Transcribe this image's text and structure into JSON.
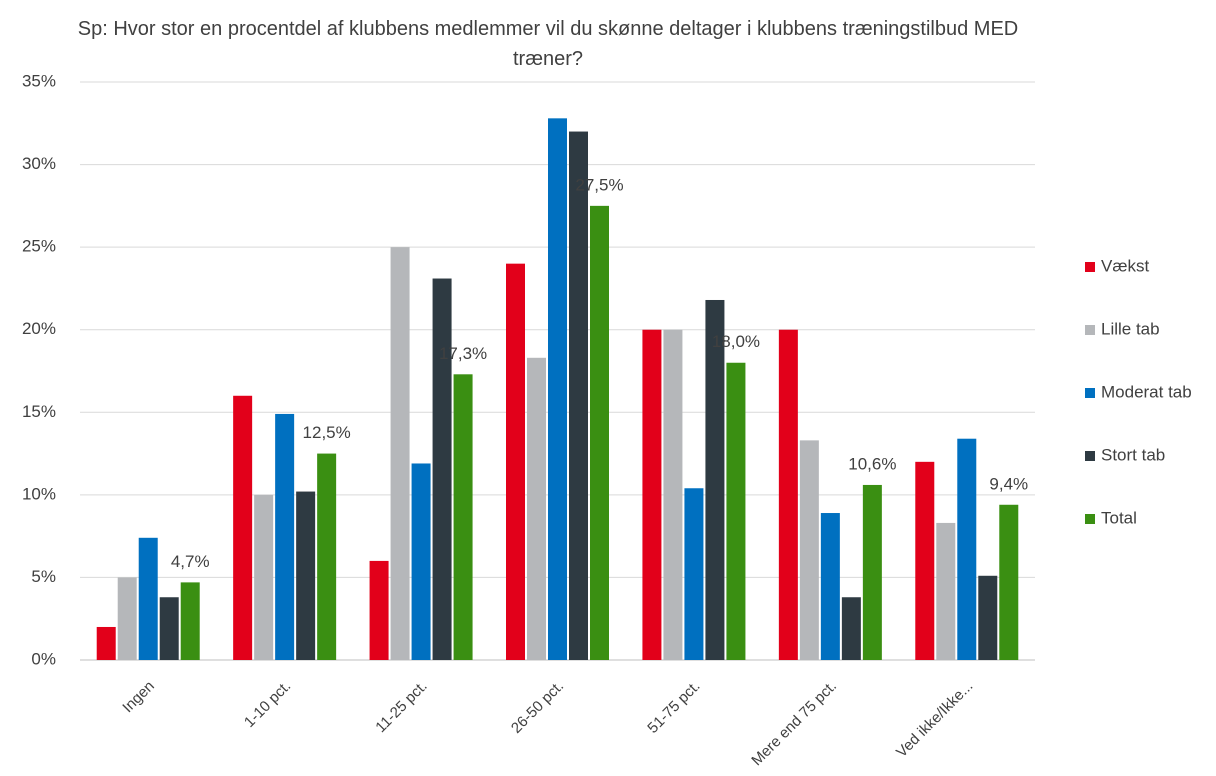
{
  "chart_data": {
    "type": "bar",
    "title": "Sp: Hvor stor en procentdel af klubbens medlemmer vil du skønne deltager i klubbens træningstilbud MED træner?",
    "categories": [
      "Ingen",
      "1-10 pct.",
      "11-25 pct.",
      "26-50 pct.",
      "51-75 pct.",
      "Mere end 75 pct.",
      "Ved ikke/Ikke..."
    ],
    "series": [
      {
        "name": "Vækst",
        "color": "#e2001a",
        "values": [
          2,
          16,
          6,
          24,
          20,
          20,
          12
        ]
      },
      {
        "name": "Lille tab",
        "color": "#b5b7ba",
        "values": [
          5,
          10,
          25,
          18.3,
          20,
          13.3,
          8.3
        ]
      },
      {
        "name": "Moderat tab",
        "color": "#0070c0",
        "values": [
          7.4,
          14.9,
          11.9,
          32.8,
          10.4,
          8.9,
          13.4
        ]
      },
      {
        "name": "Stort tab",
        "color": "#2e3a42",
        "values": [
          3.8,
          10.2,
          23.1,
          32.0,
          21.8,
          3.8,
          5.1
        ]
      },
      {
        "name": "Total",
        "color": "#3a8f12",
        "values": [
          4.7,
          12.5,
          17.3,
          27.5,
          18.0,
          10.6,
          9.4
        ],
        "value_labels": [
          "4,7%",
          "12,5%",
          "17,3%",
          "27,5%",
          "18,0%",
          "10,6%",
          "9,4%"
        ]
      }
    ],
    "ylim": [
      0,
      35
    ],
    "yticks": [
      {
        "value": 0,
        "label": "0%"
      },
      {
        "value": 5,
        "label": "5%"
      },
      {
        "value": 10,
        "label": "10%"
      },
      {
        "value": 15,
        "label": "15%"
      },
      {
        "value": 20,
        "label": "20%"
      },
      {
        "value": 25,
        "label": "25%"
      },
      {
        "value": 30,
        "label": "30%"
      },
      {
        "value": 35,
        "label": "35%"
      }
    ],
    "grid": true,
    "legend": "right"
  }
}
